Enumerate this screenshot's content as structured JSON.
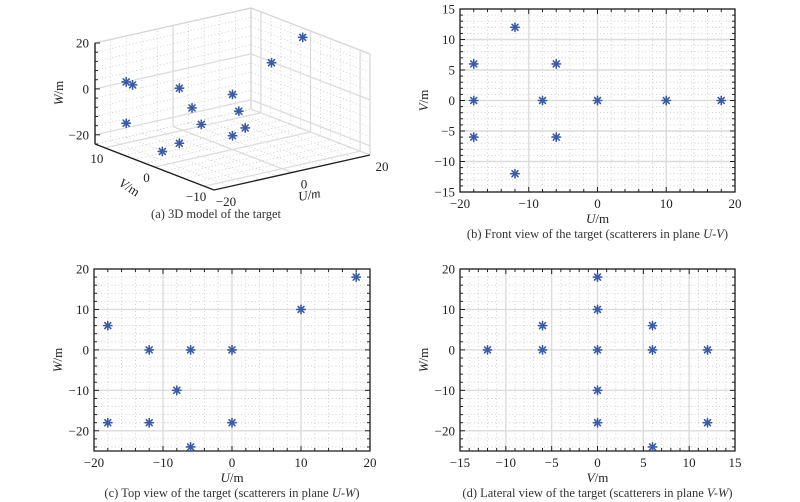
{
  "marker_color": "#3b5ba5",
  "chart_data": [
    {
      "id": "a",
      "type": "scatter3d",
      "title": "",
      "caption": "(a) 3D model of the target",
      "xlabel": "U/m",
      "ylabel": "V/m",
      "zlabel": "W/m",
      "xlim": [
        -20,
        20
      ],
      "ylim": [
        -12,
        12
      ],
      "zlim": [
        -24,
        20
      ],
      "xticks": [
        -20,
        0,
        20
      ],
      "yticks": [
        10,
        0,
        -10
      ],
      "zticks": [
        20,
        0,
        -20
      ],
      "grid": true,
      "marker": "asterisk",
      "points": [
        {
          "u": 18,
          "v": 0,
          "w": 18
        },
        {
          "u": 10,
          "v": 0,
          "w": 10
        },
        {
          "u": -8,
          "v": 0,
          "w": -10
        },
        {
          "u": -18,
          "v": 6,
          "w": 6
        },
        {
          "u": -18,
          "v": -6,
          "w": 6
        },
        {
          "u": -18,
          "v": 0,
          "w": -18
        },
        {
          "u": -12,
          "v": 12,
          "w": 0
        },
        {
          "u": -12,
          "v": 12,
          "w": -18
        },
        {
          "u": -12,
          "v": -12,
          "w": 0
        },
        {
          "u": -6,
          "v": 6,
          "w": 0
        },
        {
          "u": -6,
          "v": -6,
          "w": 0
        },
        {
          "u": -6,
          "v": 6,
          "w": -24
        },
        {
          "u": 0,
          "v": 0,
          "w": 0
        },
        {
          "u": 0,
          "v": 0,
          "w": -18
        }
      ]
    },
    {
      "id": "b",
      "type": "scatter",
      "caption_prefix": "(b) Front view of the target (scatterers in plane ",
      "caption_plane": "U-V",
      "caption_suffix": ")",
      "xlabel_var": "U",
      "ylabel_var": "V",
      "label_unit": "/m",
      "xlim": [
        -20,
        20
      ],
      "ylim": [
        -15,
        15
      ],
      "xticks": [
        -20,
        -10,
        0,
        10,
        20
      ],
      "yticks": [
        -15,
        -10,
        -5,
        0,
        5,
        10,
        15
      ],
      "xminor_step": 2,
      "yminor_step": 1,
      "grid": true,
      "marker": "asterisk",
      "x": [
        -18,
        -18,
        -18,
        -12,
        -12,
        -8,
        -6,
        -6,
        0,
        10,
        18
      ],
      "y": [
        6,
        0,
        -6,
        12,
        -12,
        0,
        6,
        -6,
        0,
        0,
        0
      ]
    },
    {
      "id": "c",
      "type": "scatter",
      "caption_prefix": "(c) Top view of the target (scatterers in plane ",
      "caption_plane": "U-W",
      "caption_suffix": ")",
      "xlabel_var": "U",
      "ylabel_var": "W",
      "label_unit": "/m",
      "xlim": [
        -20,
        20
      ],
      "ylim": [
        -25,
        20
      ],
      "xticks": [
        -20,
        -10,
        0,
        10,
        20
      ],
      "yticks": [
        -20,
        -10,
        0,
        10,
        20
      ],
      "xminor_step": 2,
      "yminor_step": 2,
      "grid": true,
      "marker": "asterisk",
      "x": [
        -18,
        -18,
        -12,
        -12,
        -8,
        -6,
        -6,
        0,
        0,
        10,
        18
      ],
      "y": [
        6,
        -18,
        0,
        -18,
        -10,
        0,
        -24,
        0,
        -18,
        10,
        18
      ]
    },
    {
      "id": "d",
      "type": "scatter",
      "caption_prefix": "(d) Lateral view of the target (scatterers in plane ",
      "caption_plane": "V-W",
      "caption_suffix": ")",
      "xlabel_var": "V",
      "ylabel_var": "W",
      "label_unit": "/m",
      "xlim": [
        -15,
        15
      ],
      "ylim": [
        -25,
        20
      ],
      "xticks": [
        -15,
        -10,
        -5,
        0,
        5,
        10,
        15
      ],
      "yticks": [
        -20,
        -10,
        0,
        10,
        20
      ],
      "xminor_step": 1,
      "yminor_step": 2,
      "grid": true,
      "marker": "asterisk",
      "x": [
        -12,
        -6,
        -6,
        0,
        0,
        0,
        0,
        0,
        6,
        6,
        6,
        12,
        12
      ],
      "y": [
        0,
        6,
        0,
        18,
        10,
        0,
        -10,
        -18,
        6,
        0,
        -24,
        0,
        -18
      ]
    }
  ]
}
